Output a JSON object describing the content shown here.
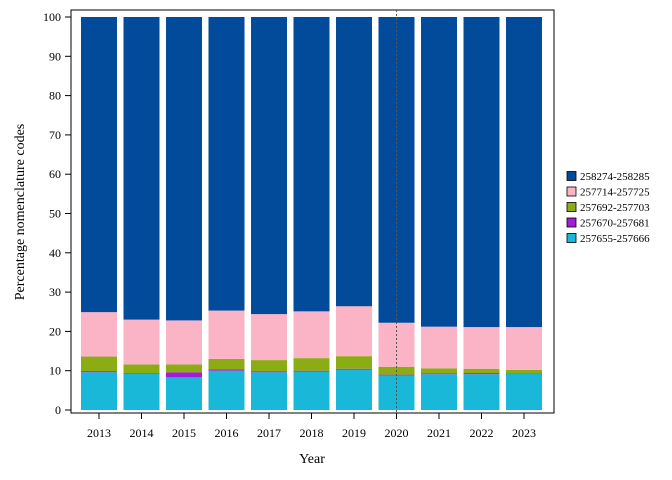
{
  "chart_data": {
    "type": "bar",
    "stacked": true,
    "xlabel": "Year",
    "ylabel": "Percentage nomenclature codes",
    "ylim": [
      0,
      100
    ],
    "yticks": [
      0,
      10,
      20,
      30,
      40,
      50,
      60,
      70,
      80,
      90,
      100
    ],
    "categories": [
      "2013",
      "2014",
      "2015",
      "2016",
      "2017",
      "2018",
      "2019",
      "2020",
      "2021",
      "2022",
      "2023"
    ],
    "reference_line_category": "2020",
    "legend_position": "right",
    "series": [
      {
        "name": "257655-257666",
        "color": "#1ab8d8",
        "values": [
          9.6,
          9.2,
          8.3,
          10.0,
          9.6,
          9.8,
          10.3,
          8.8,
          9.1,
          9.1,
          9.3
        ]
      },
      {
        "name": "257670-257681",
        "color": "#a21ed4",
        "values": [
          0.3,
          0.2,
          1.3,
          0.3,
          0.2,
          0.2,
          0.2,
          0.2,
          0.2,
          0.3,
          0.1
        ]
      },
      {
        "name": "257692-257703",
        "color": "#8bac12",
        "values": [
          3.7,
          2.2,
          2.0,
          2.7,
          2.9,
          3.2,
          3.2,
          2.0,
          1.3,
          1.1,
          0.8
        ]
      },
      {
        "name": "257714-257725",
        "color": "#fbb3c6",
        "values": [
          11.3,
          11.4,
          11.2,
          12.3,
          11.7,
          11.9,
          12.7,
          11.2,
          10.6,
          10.6,
          10.9
        ]
      },
      {
        "name": "258274-258285",
        "color": "#024b9b",
        "values": [
          75.1,
          77.0,
          77.2,
          74.7,
          75.6,
          74.9,
          73.6,
          77.8,
          78.8,
          78.9,
          78.9
        ]
      }
    ]
  }
}
